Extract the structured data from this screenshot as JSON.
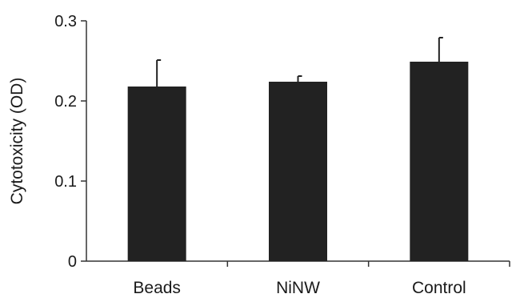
{
  "chart_data": {
    "type": "bar",
    "title": "",
    "xlabel": "",
    "ylabel": "Cytotoxicity (OD)",
    "categories": [
      "Beads",
      "NiNW",
      "Control"
    ],
    "values": [
      0.218,
      0.224,
      0.249
    ],
    "error_plus": [
      0.033,
      0.007,
      0.03
    ],
    "ylim": [
      0,
      0.3
    ],
    "yticks": [
      0,
      0.1,
      0.2,
      0.3
    ],
    "ytick_labels": [
      "0",
      "0.1",
      "0.2",
      "0.3"
    ],
    "grid": false,
    "legend": "none",
    "bar_color": "#222222",
    "axis_color": "#333333"
  }
}
